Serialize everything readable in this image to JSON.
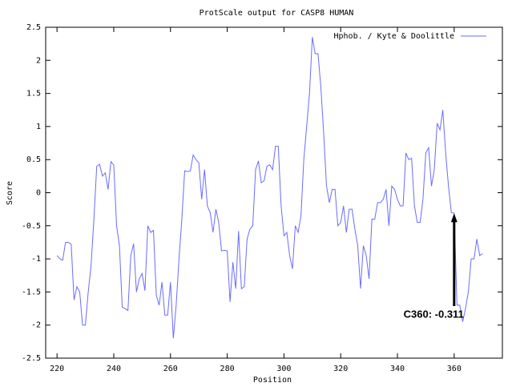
{
  "chart_data": {
    "type": "line",
    "title": "ProtScale output for CASP8 HUMAN",
    "x_label": "Position",
    "y_label": "Score",
    "x": [
      220,
      221,
      222,
      223,
      224,
      225,
      226,
      227,
      228,
      229,
      230,
      231,
      232,
      233,
      234,
      235,
      236,
      237,
      238,
      239,
      240,
      241,
      242,
      243,
      244,
      245,
      246,
      247,
      248,
      249,
      250,
      251,
      252,
      253,
      254,
      255,
      256,
      257,
      258,
      259,
      260,
      261,
      262,
      263,
      264,
      265,
      266,
      267,
      268,
      269,
      270,
      271,
      272,
      273,
      274,
      275,
      276,
      277,
      278,
      279,
      280,
      281,
      282,
      283,
      284,
      285,
      286,
      287,
      288,
      289,
      290,
      291,
      292,
      293,
      294,
      295,
      296,
      297,
      298,
      299,
      300,
      301,
      302,
      303,
      304,
      305,
      306,
      307,
      308,
      309,
      310,
      311,
      312,
      313,
      314,
      315,
      316,
      317,
      318,
      319,
      320,
      321,
      322,
      323,
      324,
      325,
      326,
      327,
      328,
      329,
      330,
      331,
      332,
      333,
      334,
      335,
      336,
      337,
      338,
      339,
      340,
      341,
      342,
      343,
      344,
      345,
      346,
      347,
      348,
      349,
      350,
      351,
      352,
      353,
      354,
      355,
      356,
      357,
      358,
      359,
      360,
      361,
      362,
      363,
      364,
      365,
      366,
      367,
      368,
      369,
      370
    ],
    "series": [
      {
        "name": "Hphob. / Kyte & Doolittle",
        "color": "#6b6bff",
        "values": [
          -0.95,
          -1.0,
          -1.02,
          -0.75,
          -0.75,
          -0.78,
          -1.62,
          -1.42,
          -1.5,
          -2.0,
          -2.0,
          -1.5,
          -1.1,
          -0.4,
          0.4,
          0.43,
          0.25,
          0.3,
          0.05,
          0.47,
          0.42,
          -0.5,
          -0.8,
          -1.73,
          -1.75,
          -1.78,
          -0.95,
          -0.77,
          -1.5,
          -1.3,
          -1.22,
          -1.48,
          -0.5,
          -0.6,
          -0.57,
          -1.55,
          -1.7,
          -1.35,
          -1.85,
          -1.85,
          -1.35,
          -2.2,
          -1.7,
          -1.0,
          -0.4,
          0.33,
          0.32,
          0.33,
          0.57,
          0.5,
          0.45,
          -0.1,
          0.35,
          -0.2,
          -0.3,
          -0.6,
          -0.25,
          -0.45,
          -0.88,
          -0.87,
          -0.88,
          -1.65,
          -1.05,
          -1.45,
          -0.58,
          -1.45,
          -1.42,
          -0.7,
          -0.55,
          -0.5,
          0.35,
          0.48,
          0.15,
          0.18,
          0.4,
          0.42,
          0.35,
          0.7,
          0.7,
          -0.2,
          -0.65,
          -0.6,
          -0.95,
          -1.15,
          -0.5,
          -0.6,
          -0.35,
          0.5,
          1.0,
          1.5,
          2.35,
          2.1,
          2.1,
          1.6,
          0.9,
          0.1,
          -0.15,
          0.05,
          0.05,
          -0.5,
          -0.45,
          -0.2,
          -0.6,
          -0.25,
          -0.25,
          -0.55,
          -0.8,
          -1.45,
          -0.8,
          -0.95,
          -1.3,
          -0.4,
          -0.4,
          -0.15,
          -0.15,
          -0.1,
          0.05,
          -0.5,
          0.1,
          0.05,
          -0.1,
          -0.2,
          -0.2,
          0.6,
          0.5,
          0.52,
          -0.2,
          -0.45,
          -0.45,
          -0.1,
          0.6,
          0.68,
          0.1,
          0.35,
          1.05,
          0.95,
          1.25,
          0.6,
          0.1,
          -0.3,
          -0.311,
          -1.7,
          -1.7,
          -1.95,
          -1.75,
          -1.5,
          -1.0,
          -1.0,
          -0.7,
          -0.95,
          -0.92
        ]
      }
    ],
    "xlim": [
      216,
      377
    ],
    "xticks": [
      220,
      240,
      260,
      280,
      300,
      320,
      340,
      360
    ],
    "ylim": [
      -2.5,
      2.5
    ],
    "yticks": [
      -2.5,
      -2,
      -1.5,
      -1,
      -0.5,
      0,
      0.5,
      1,
      1.5,
      2,
      2.5
    ],
    "legend": "top-right",
    "annotation": "C360: -0.311"
  }
}
